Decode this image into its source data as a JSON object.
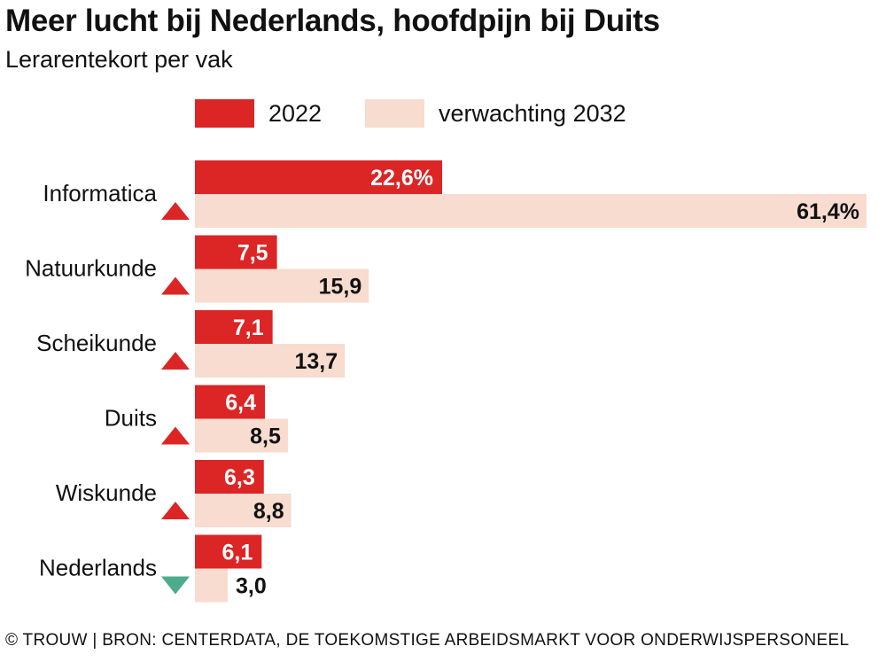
{
  "title": "Meer lucht bij Nederlands, hoofdpijn bij Duits",
  "subtitle": "Lerarentekort per vak",
  "source": "© TROUW | BRON: CENTERDATA, DE TOEKOMSTIGE ARBEIDSMARKT VOOR ONDERWIJSPERSONEEL",
  "colors": {
    "series_2022": "#dc2525",
    "series_2032": "#f7dccf",
    "arrow_up": "#dc2525",
    "arrow_down": "#4bab8a"
  },
  "chart_data": {
    "type": "bar",
    "orientation": "horizontal",
    "categories": [
      "Informatica",
      "Natuurkunde",
      "Scheikunde",
      "Duits",
      "Wiskunde",
      "Nederlands"
    ],
    "series": [
      {
        "name": "2022",
        "values": [
          22.6,
          7.5,
          7.1,
          6.4,
          6.3,
          6.1
        ],
        "labels": [
          "22,6%",
          "7,5",
          "7,1",
          "6,4",
          "6,3",
          "6,1"
        ]
      },
      {
        "name": "verwachting 2032",
        "values": [
          61.4,
          15.9,
          13.7,
          8.5,
          8.8,
          3.0
        ],
        "labels": [
          "61,4%",
          "15,9",
          "13,7",
          "8,5",
          "8,8",
          "3,0"
        ]
      }
    ],
    "trend": [
      "up",
      "up",
      "up",
      "up",
      "up",
      "down"
    ],
    "xlim": [
      0,
      61.4
    ],
    "grid": false,
    "legend_position": "top"
  }
}
